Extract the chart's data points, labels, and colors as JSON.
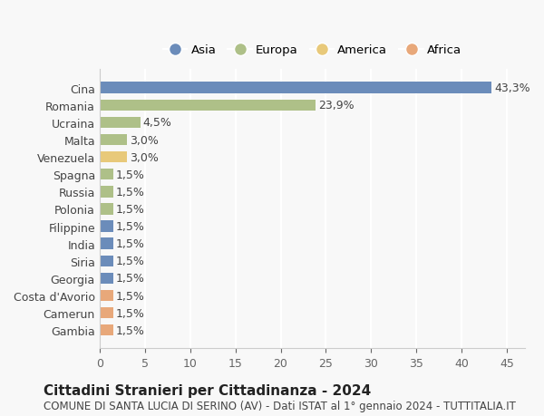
{
  "categories": [
    "Cina",
    "Romania",
    "Ucraina",
    "Malta",
    "Venezuela",
    "Spagna",
    "Russia",
    "Polonia",
    "Filippine",
    "India",
    "Siria",
    "Georgia",
    "Costa d'Avorio",
    "Camerun",
    "Gambia"
  ],
  "values": [
    43.3,
    23.9,
    4.5,
    3.0,
    3.0,
    1.5,
    1.5,
    1.5,
    1.5,
    1.5,
    1.5,
    1.5,
    1.5,
    1.5,
    1.5
  ],
  "labels": [
    "43,3%",
    "23,9%",
    "4,5%",
    "3,0%",
    "3,0%",
    "1,5%",
    "1,5%",
    "1,5%",
    "1,5%",
    "1,5%",
    "1,5%",
    "1,5%",
    "1,5%",
    "1,5%",
    "1,5%"
  ],
  "colors": [
    "#6b8cba",
    "#aec088",
    "#aec088",
    "#aec088",
    "#e8c97a",
    "#aec088",
    "#aec088",
    "#aec088",
    "#6b8cba",
    "#6b8cba",
    "#6b8cba",
    "#6b8cba",
    "#e8a87a",
    "#e8a87a",
    "#e8a87a"
  ],
  "legend_labels": [
    "Asia",
    "Europa",
    "America",
    "Africa"
  ],
  "legend_colors": [
    "#6b8cba",
    "#aec088",
    "#e8c97a",
    "#e8a87a"
  ],
  "title": "Cittadini Stranieri per Cittadinanza - 2024",
  "subtitle": "COMUNE DI SANTA LUCIA DI SERINO (AV) - Dati ISTAT al 1° gennaio 2024 - TUTTITALIA.IT",
  "xlim": [
    0,
    47
  ],
  "xticks": [
    0,
    5,
    10,
    15,
    20,
    25,
    30,
    35,
    40,
    45
  ],
  "bg_color": "#f8f8f8",
  "grid_color": "#ffffff",
  "bar_height": 0.65,
  "label_fontsize": 9,
  "title_fontsize": 11,
  "subtitle_fontsize": 8.5,
  "tick_fontsize": 9,
  "ytick_fontsize": 9
}
